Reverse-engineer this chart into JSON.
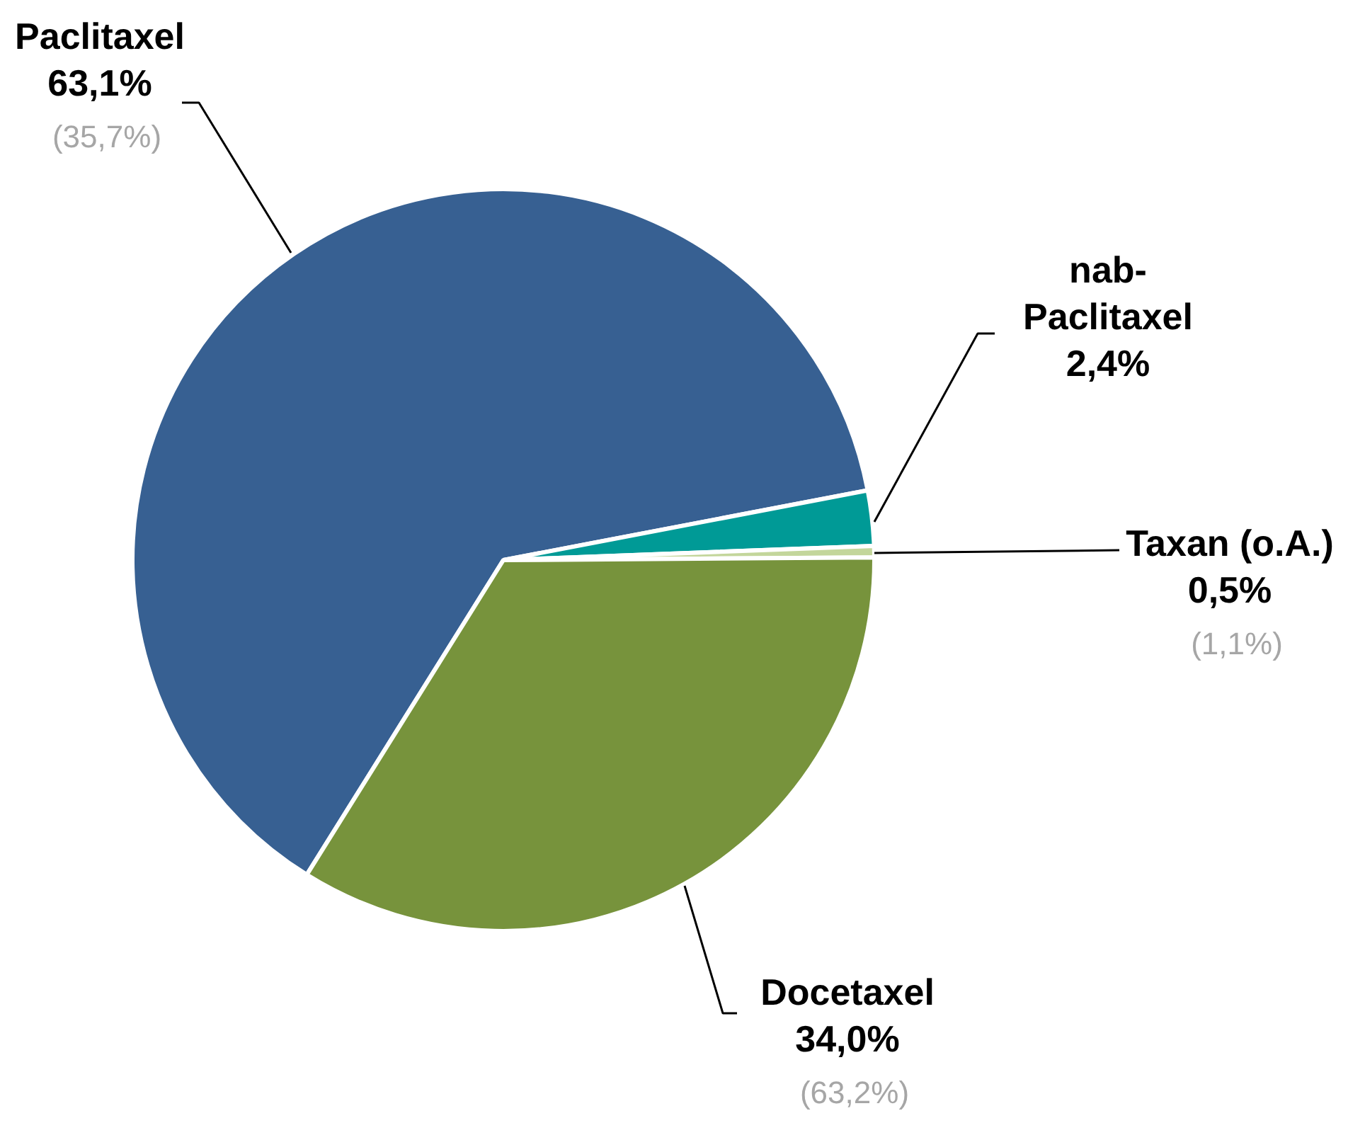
{
  "chart_data": {
    "type": "pie",
    "categories": [
      "Paclitaxel",
      "nab-\nPaclitaxel",
      "Taxan (o.A.)",
      "Docetaxel"
    ],
    "values": [
      63.1,
      2.4,
      0.5,
      34.0
    ],
    "colors": [
      "#376092",
      "#009a96",
      "#c3d69b",
      "#77933c"
    ],
    "value_labels": [
      "63,1%",
      "2,4%",
      "0,5%",
      "34,0%"
    ],
    "annotations": [
      {
        "text": "(35,7%)",
        "x": "Paclitaxel"
      },
      {
        "text": "(1,1%)",
        "x": "Taxan (o.A.)"
      },
      {
        "text": "(63,2%)",
        "x": "Docetaxel"
      }
    ]
  }
}
